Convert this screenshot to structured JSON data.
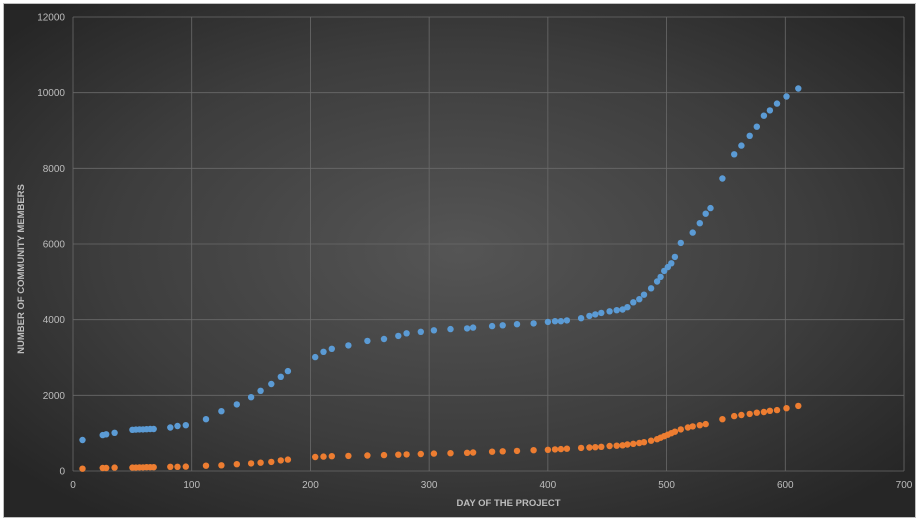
{
  "chart_data": {
    "type": "scatter",
    "title": "",
    "xlabel": "DAY OF THE PROJECT",
    "ylabel": "NUMBER OF COMMUNITY MEMBERS",
    "xlim": [
      0,
      700
    ],
    "ylim": [
      0,
      12000
    ],
    "x_ticks": [
      "0",
      "100",
      "200",
      "300",
      "400",
      "500",
      "600",
      "700"
    ],
    "y_ticks": [
      "0",
      "2000",
      "4000",
      "6000",
      "8000",
      "10000",
      "12000"
    ],
    "grid": true,
    "legend": "none",
    "series": [
      {
        "color": "#5b9bd5",
        "x": [
          8,
          25,
          28,
          35,
          50,
          53,
          56,
          59,
          62,
          65,
          68,
          82,
          88,
          95,
          112,
          125,
          138,
          150,
          158,
          167,
          175,
          181,
          204,
          211,
          218,
          232,
          248,
          262,
          274,
          281,
          293,
          304,
          318,
          332,
          337,
          353,
          362,
          374,
          388,
          400,
          406,
          411,
          416,
          428,
          435,
          440,
          445,
          452,
          458,
          463,
          467,
          472,
          477,
          481,
          487,
          492,
          495,
          498,
          501,
          504,
          507,
          512,
          522,
          528,
          533,
          537,
          547,
          557,
          563,
          570,
          576,
          582,
          587,
          593,
          601,
          611
        ],
        "y": [
          820,
          950,
          970,
          1010,
          1090,
          1095,
          1100,
          1100,
          1105,
          1110,
          1110,
          1150,
          1190,
          1210,
          1370,
          1580,
          1760,
          1950,
          2120,
          2300,
          2490,
          2640,
          3010,
          3150,
          3230,
          3320,
          3440,
          3490,
          3570,
          3640,
          3680,
          3720,
          3750,
          3770,
          3790,
          3830,
          3850,
          3880,
          3900,
          3940,
          3960,
          3960,
          3980,
          4040,
          4100,
          4140,
          4180,
          4220,
          4250,
          4270,
          4330,
          4460,
          4540,
          4660,
          4830,
          5010,
          5130,
          5290,
          5390,
          5490,
          5660,
          6030,
          6300,
          6550,
          6800,
          6950,
          7730,
          8370,
          8600,
          8860,
          9100,
          9390,
          9530,
          9710,
          9900,
          10110
        ]
      },
      {
        "color": "#ed7d31",
        "x": [
          8,
          25,
          28,
          35,
          50,
          53,
          56,
          59,
          62,
          65,
          68,
          82,
          88,
          95,
          112,
          125,
          138,
          150,
          158,
          167,
          175,
          181,
          204,
          211,
          218,
          232,
          248,
          262,
          274,
          281,
          293,
          304,
          318,
          332,
          337,
          353,
          362,
          374,
          388,
          400,
          406,
          411,
          416,
          428,
          435,
          440,
          445,
          452,
          458,
          463,
          467,
          472,
          477,
          481,
          487,
          492,
          495,
          498,
          501,
          504,
          507,
          512,
          518,
          522,
          528,
          533,
          547,
          557,
          563,
          570,
          576,
          582,
          587,
          593,
          601,
          611
        ],
        "y": [
          60,
          80,
          80,
          90,
          90,
          90,
          95,
          95,
          100,
          100,
          100,
          110,
          110,
          115,
          140,
          150,
          180,
          200,
          220,
          240,
          280,
          300,
          370,
          380,
          390,
          400,
          410,
          420,
          430,
          440,
          450,
          460,
          470,
          480,
          490,
          510,
          520,
          530,
          550,
          560,
          570,
          580,
          590,
          610,
          620,
          630,
          640,
          660,
          670,
          680,
          700,
          720,
          740,
          760,
          800,
          840,
          880,
          920,
          960,
          1000,
          1040,
          1100,
          1150,
          1180,
          1210,
          1240,
          1370,
          1450,
          1480,
          1510,
          1540,
          1560,
          1590,
          1610,
          1660,
          1720
        ]
      }
    ]
  }
}
